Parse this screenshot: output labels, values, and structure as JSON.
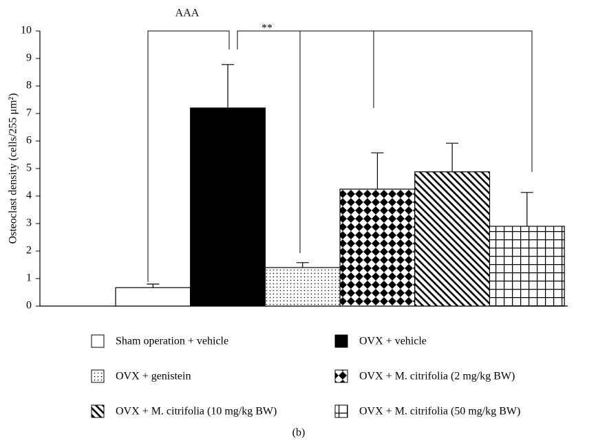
{
  "chart_data": {
    "type": "bar",
    "y_label": "Osteoclast density (cells/255 μm²)",
    "categories": [
      "Sham operation + vehicle",
      "OVX + vehicle",
      "OVX + genistein",
      "OVX + M. citrifolia (2 mg/kg BW)",
      "OVX + M. citrifolia (10 mg/kg BW)",
      "OVX + M. citrifolia (50 mg/kg BW)"
    ],
    "values": [
      0.67,
      7.2,
      1.4,
      4.25,
      4.88,
      2.9
    ],
    "errors": [
      0.13,
      1.58,
      0.18,
      1.32,
      1.04,
      1.23
    ],
    "fills": [
      "white",
      "black",
      "dots",
      "checker",
      "diagonal",
      "grid"
    ],
    "ylim": [
      0,
      10
    ],
    "yticks": [
      0,
      1,
      2,
      3,
      4,
      5,
      6,
      7,
      8,
      9,
      10
    ],
    "annotations": [
      "AAA",
      "**"
    ],
    "caption": "(b)"
  }
}
